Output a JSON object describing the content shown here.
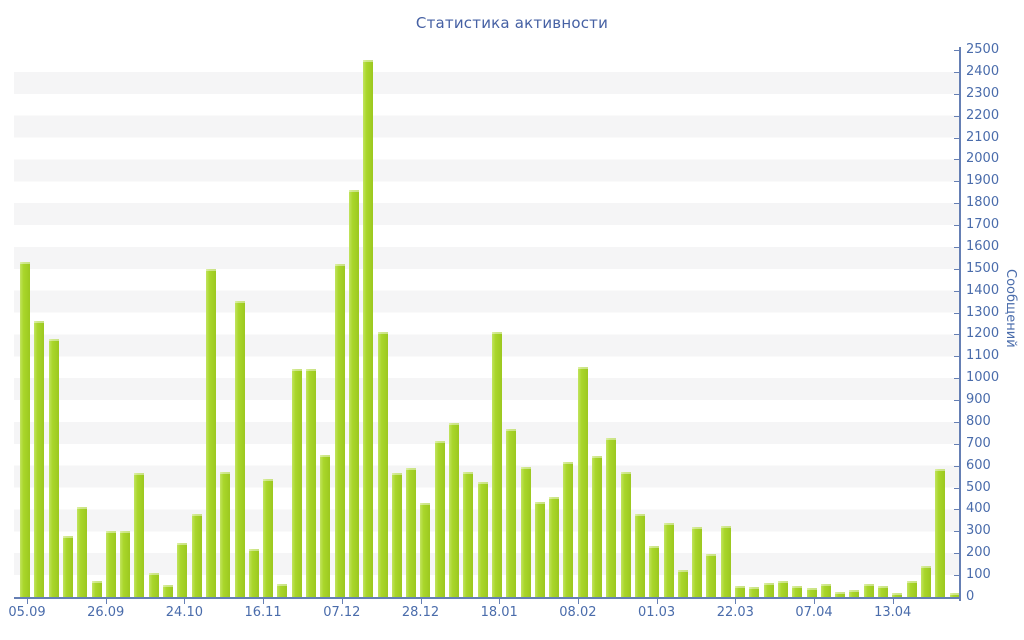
{
  "title": "Статистика активности",
  "colors": {
    "bar": "#a9d62b",
    "bar_edge_light": "#c2e45f",
    "bar_edge_dark": "#9cc81f",
    "axis_line": "#657fb4",
    "tick_label": "#4a6cab",
    "title_text": "#4661a4",
    "stripe": "#f5f5f6",
    "background": "#ffffff"
  },
  "chart_data": {
    "type": "bar",
    "title": "Статистика активности",
    "xlabel": "",
    "ylabel": "Сообщений",
    "ylim": [
      0,
      2500
    ],
    "ytick_step": 100,
    "legend": "none",
    "grid": "alternating horizontal stripe bands, 100 units each",
    "x_tick_labels": [
      "05.09",
      "26.09",
      "24.10",
      "16.11",
      "07.12",
      "28.12",
      "18.01",
      "08.02",
      "01.03",
      "22.03",
      "07.04",
      "13.04"
    ],
    "values": [
      1530,
      1260,
      1180,
      280,
      410,
      75,
      300,
      300,
      565,
      110,
      55,
      245,
      380,
      1500,
      570,
      1355,
      220,
      540,
      60,
      1040,
      1040,
      650,
      1520,
      1860,
      2455,
      1210,
      565,
      590,
      430,
      715,
      795,
      570,
      525,
      1210,
      770,
      595,
      435,
      455,
      615,
      1050,
      645,
      725,
      570,
      380,
      235,
      340,
      125,
      320,
      195,
      325,
      50,
      45,
      65,
      75,
      50,
      40,
      60,
      25,
      30,
      60,
      50,
      20,
      75,
      140,
      585,
      20
    ]
  }
}
